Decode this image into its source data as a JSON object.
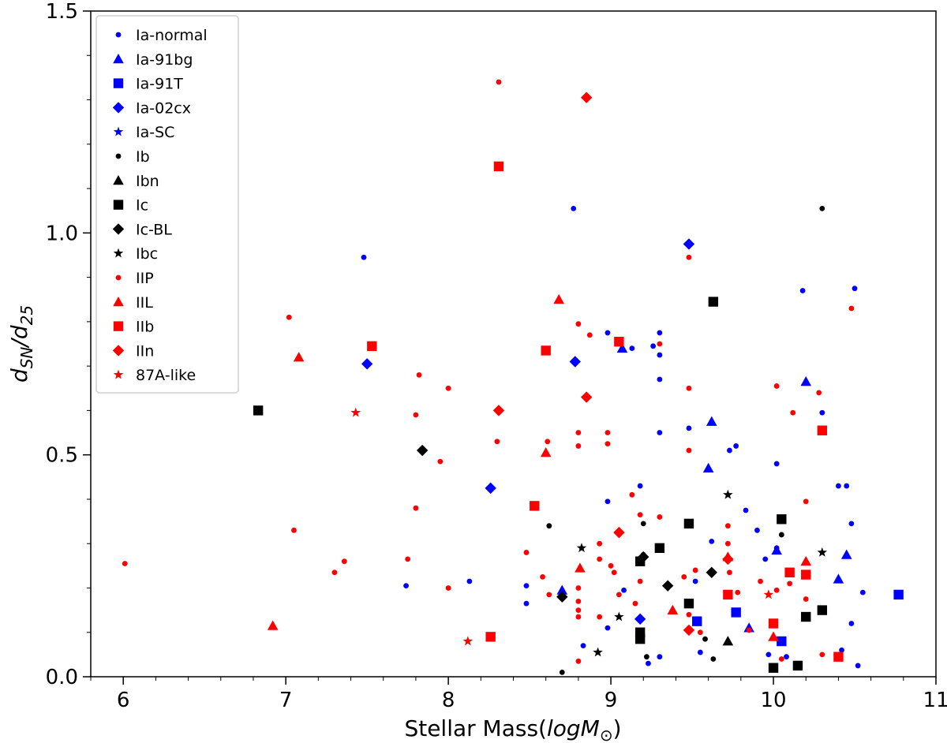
{
  "chart_data": {
    "type": "scatter",
    "xlabel_text": "Stellar Mass(",
    "xlabel_math": "logM",
    "xlabel_sub": "⊙",
    "xlabel_close": ")",
    "ylabel_main": "d",
    "ylabel_sub1": "SN",
    "ylabel_mid": "/d",
    "ylabel_sub2": "25",
    "xlim": [
      5.8,
      11.0
    ],
    "ylim": [
      0.0,
      1.5
    ],
    "xticks": [
      "6",
      "7",
      "8",
      "9",
      "10",
      "11"
    ],
    "xtick_values": [
      6,
      7,
      8,
      9,
      10,
      11
    ],
    "yticks": [
      "0.0",
      "0.5",
      "1.0",
      "1.5"
    ],
    "ytick_values": [
      0.0,
      0.5,
      1.0,
      1.5
    ],
    "legend_position": "upper-left",
    "colors": {
      "blue": "#0000ff",
      "black": "#000000",
      "red": "#ff0000"
    },
    "series": [
      {
        "name": "Ia-normal",
        "marker": "circle",
        "color": "#0000ff",
        "size": "small",
        "points": [
          [
            7.48,
            0.945
          ],
          [
            7.74,
            0.205
          ],
          [
            8.13,
            0.215
          ],
          [
            8.48,
            0.205
          ],
          [
            8.48,
            0.165
          ],
          [
            8.77,
            1.055
          ],
          [
            8.83,
            0.07
          ],
          [
            8.98,
            0.775
          ],
          [
            8.98,
            0.395
          ],
          [
            8.98,
            0.11
          ],
          [
            9.08,
            0.195
          ],
          [
            9.13,
            0.74
          ],
          [
            9.18,
            0.43
          ],
          [
            9.23,
            0.03
          ],
          [
            9.26,
            0.745
          ],
          [
            9.3,
            0.775
          ],
          [
            9.3,
            0.725
          ],
          [
            9.3,
            0.67
          ],
          [
            9.3,
            0.55
          ],
          [
            9.3,
            0.045
          ],
          [
            9.48,
            0.56
          ],
          [
            9.52,
            0.215
          ],
          [
            9.55,
            0.055
          ],
          [
            9.62,
            0.305
          ],
          [
            9.73,
            0.51
          ],
          [
            9.77,
            0.52
          ],
          [
            9.83,
            0.375
          ],
          [
            9.9,
            0.33
          ],
          [
            9.95,
            0.265
          ],
          [
            9.97,
            0.05
          ],
          [
            10.02,
            0.48
          ],
          [
            10.02,
            0.29
          ],
          [
            10.08,
            0.045
          ],
          [
            10.18,
            0.87
          ],
          [
            10.3,
            0.595
          ],
          [
            10.4,
            0.43
          ],
          [
            10.42,
            0.06
          ],
          [
            10.45,
            0.43
          ],
          [
            10.48,
            0.345
          ],
          [
            10.48,
            0.12
          ],
          [
            10.5,
            0.875
          ],
          [
            10.52,
            0.025
          ],
          [
            10.55,
            0.19
          ]
        ]
      },
      {
        "name": "Ia-91bg",
        "marker": "triangle",
        "color": "#0000ff",
        "size": "large",
        "points": [
          [
            8.7,
            0.195
          ],
          [
            9.07,
            0.74
          ],
          [
            9.62,
            0.575
          ],
          [
            9.6,
            0.47
          ],
          [
            9.85,
            0.11
          ],
          [
            10.02,
            0.285
          ],
          [
            10.2,
            0.665
          ],
          [
            10.4,
            0.22
          ],
          [
            10.45,
            0.275
          ]
        ]
      },
      {
        "name": "Ia-91T",
        "marker": "square",
        "color": "#0000ff",
        "size": "large",
        "points": [
          [
            9.53,
            0.125
          ],
          [
            9.77,
            0.145
          ],
          [
            10.05,
            0.08
          ],
          [
            10.77,
            0.185
          ]
        ]
      },
      {
        "name": "Ia-02cx",
        "marker": "diamond",
        "color": "#0000ff",
        "size": "large",
        "points": [
          [
            7.5,
            0.705
          ],
          [
            8.26,
            0.425
          ],
          [
            8.78,
            0.71
          ],
          [
            9.48,
            0.975
          ],
          [
            9.18,
            0.13
          ]
        ]
      },
      {
        "name": "Ia-SC",
        "marker": "star",
        "color": "#0000ff",
        "size": "large",
        "points": []
      },
      {
        "name": "Ib",
        "marker": "circle",
        "color": "#000000",
        "size": "small",
        "points": [
          [
            8.62,
            0.34
          ],
          [
            8.7,
            0.01
          ],
          [
            9.2,
            0.345
          ],
          [
            9.2,
            0.275
          ],
          [
            9.22,
            0.045
          ],
          [
            9.58,
            0.085
          ],
          [
            9.63,
            0.04
          ],
          [
            10.05,
            0.32
          ],
          [
            10.3,
            1.055
          ]
        ]
      },
      {
        "name": "Ibn",
        "marker": "triangle",
        "color": "#000000",
        "size": "large",
        "points": [
          [
            9.72,
            0.08
          ]
        ]
      },
      {
        "name": "Ic",
        "marker": "square",
        "color": "#000000",
        "size": "large",
        "points": [
          [
            6.83,
            0.6
          ],
          [
            9.18,
            0.1
          ],
          [
            9.18,
            0.085
          ],
          [
            9.18,
            0.26
          ],
          [
            9.3,
            0.29
          ],
          [
            9.48,
            0.345
          ],
          [
            9.48,
            0.165
          ],
          [
            9.63,
            0.845
          ],
          [
            10.0,
            0.02
          ],
          [
            10.05,
            0.355
          ],
          [
            10.15,
            0.025
          ],
          [
            10.2,
            0.135
          ],
          [
            10.3,
            0.15
          ]
        ]
      },
      {
        "name": "Ic-BL",
        "marker": "diamond",
        "color": "#000000",
        "size": "large",
        "points": [
          [
            7.84,
            0.51
          ],
          [
            8.7,
            0.18
          ],
          [
            9.2,
            0.27
          ],
          [
            9.35,
            0.205
          ],
          [
            9.62,
            0.235
          ]
        ]
      },
      {
        "name": "Ibc",
        "marker": "star",
        "color": "#000000",
        "size": "large",
        "points": [
          [
            8.82,
            0.29
          ],
          [
            8.92,
            0.055
          ],
          [
            9.05,
            0.135
          ],
          [
            9.72,
            0.41
          ],
          [
            10.3,
            0.28
          ]
        ]
      },
      {
        "name": "IIP",
        "marker": "circle",
        "color": "#ff0000",
        "size": "small",
        "points": [
          [
            6.01,
            0.255
          ],
          [
            7.02,
            0.81
          ],
          [
            7.05,
            0.33
          ],
          [
            7.3,
            0.235
          ],
          [
            7.36,
            0.26
          ],
          [
            7.75,
            0.265
          ],
          [
            7.8,
            0.38
          ],
          [
            7.8,
            0.59
          ],
          [
            7.82,
            0.68
          ],
          [
            7.95,
            0.485
          ],
          [
            8.0,
            0.65
          ],
          [
            8.0,
            0.2
          ],
          [
            8.31,
            1.34
          ],
          [
            8.3,
            0.53
          ],
          [
            8.48,
            0.28
          ],
          [
            8.58,
            0.225
          ],
          [
            8.61,
            0.53
          ],
          [
            8.62,
            0.185
          ],
          [
            8.8,
            0.795
          ],
          [
            8.8,
            0.55
          ],
          [
            8.8,
            0.52
          ],
          [
            8.8,
            0.2
          ],
          [
            8.8,
            0.17
          ],
          [
            8.8,
            0.15
          ],
          [
            8.8,
            0.135
          ],
          [
            8.8,
            0.035
          ],
          [
            8.87,
            0.77
          ],
          [
            8.93,
            0.265
          ],
          [
            8.93,
            0.3
          ],
          [
            8.93,
            0.135
          ],
          [
            8.98,
            0.55
          ],
          [
            8.98,
            0.525
          ],
          [
            9.0,
            0.25
          ],
          [
            9.02,
            0.235
          ],
          [
            9.05,
            0.185
          ],
          [
            9.13,
            0.41
          ],
          [
            9.15,
            0.165
          ],
          [
            9.18,
            0.365
          ],
          [
            9.18,
            0.215
          ],
          [
            9.3,
            0.75
          ],
          [
            9.3,
            0.36
          ],
          [
            9.45,
            0.225
          ],
          [
            9.48,
            0.945
          ],
          [
            9.48,
            0.65
          ],
          [
            9.48,
            0.51
          ],
          [
            9.48,
            0.14
          ],
          [
            9.52,
            0.24
          ],
          [
            9.55,
            0.1
          ],
          [
            9.72,
            0.34
          ],
          [
            9.72,
            0.3
          ],
          [
            9.73,
            0.235
          ],
          [
            9.78,
            0.19
          ],
          [
            9.85,
            0.105
          ],
          [
            9.92,
            0.215
          ],
          [
            10.02,
            0.655
          ],
          [
            10.02,
            0.195
          ],
          [
            10.05,
            0.04
          ],
          [
            10.1,
            0.21
          ],
          [
            10.12,
            0.595
          ],
          [
            10.2,
            0.395
          ],
          [
            10.2,
            0.175
          ],
          [
            10.28,
            0.64
          ],
          [
            10.3,
            0.05
          ],
          [
            10.48,
            0.83
          ]
        ]
      },
      {
        "name": "IIL",
        "marker": "triangle",
        "color": "#ff0000",
        "size": "large",
        "points": [
          [
            6.92,
            0.115
          ],
          [
            7.08,
            0.72
          ],
          [
            8.6,
            0.505
          ],
          [
            8.68,
            0.85
          ],
          [
            8.81,
            0.245
          ],
          [
            9.38,
            0.15
          ],
          [
            9.72,
            0.27
          ],
          [
            10.0,
            0.09
          ],
          [
            10.2,
            0.26
          ]
        ]
      },
      {
        "name": "IIb",
        "marker": "square",
        "color": "#ff0000",
        "size": "large",
        "points": [
          [
            7.53,
            0.745
          ],
          [
            8.26,
            0.09
          ],
          [
            8.31,
            1.15
          ],
          [
            8.53,
            0.385
          ],
          [
            8.6,
            0.735
          ],
          [
            9.05,
            0.755
          ],
          [
            9.72,
            0.185
          ],
          [
            10.0,
            0.12
          ],
          [
            10.1,
            0.235
          ],
          [
            10.2,
            0.23
          ],
          [
            10.3,
            0.555
          ],
          [
            10.4,
            0.045
          ]
        ]
      },
      {
        "name": "IIn",
        "marker": "diamond",
        "color": "#ff0000",
        "size": "large",
        "points": [
          [
            8.31,
            0.6
          ],
          [
            8.85,
            1.305
          ],
          [
            8.85,
            0.63
          ],
          [
            9.05,
            0.325
          ],
          [
            9.48,
            0.105
          ],
          [
            9.72,
            0.265
          ]
        ]
      },
      {
        "name": "87A-like",
        "marker": "star",
        "color": "#ff0000",
        "size": "large",
        "points": [
          [
            7.43,
            0.595
          ],
          [
            8.12,
            0.08
          ],
          [
            9.97,
            0.185
          ]
        ]
      }
    ]
  }
}
